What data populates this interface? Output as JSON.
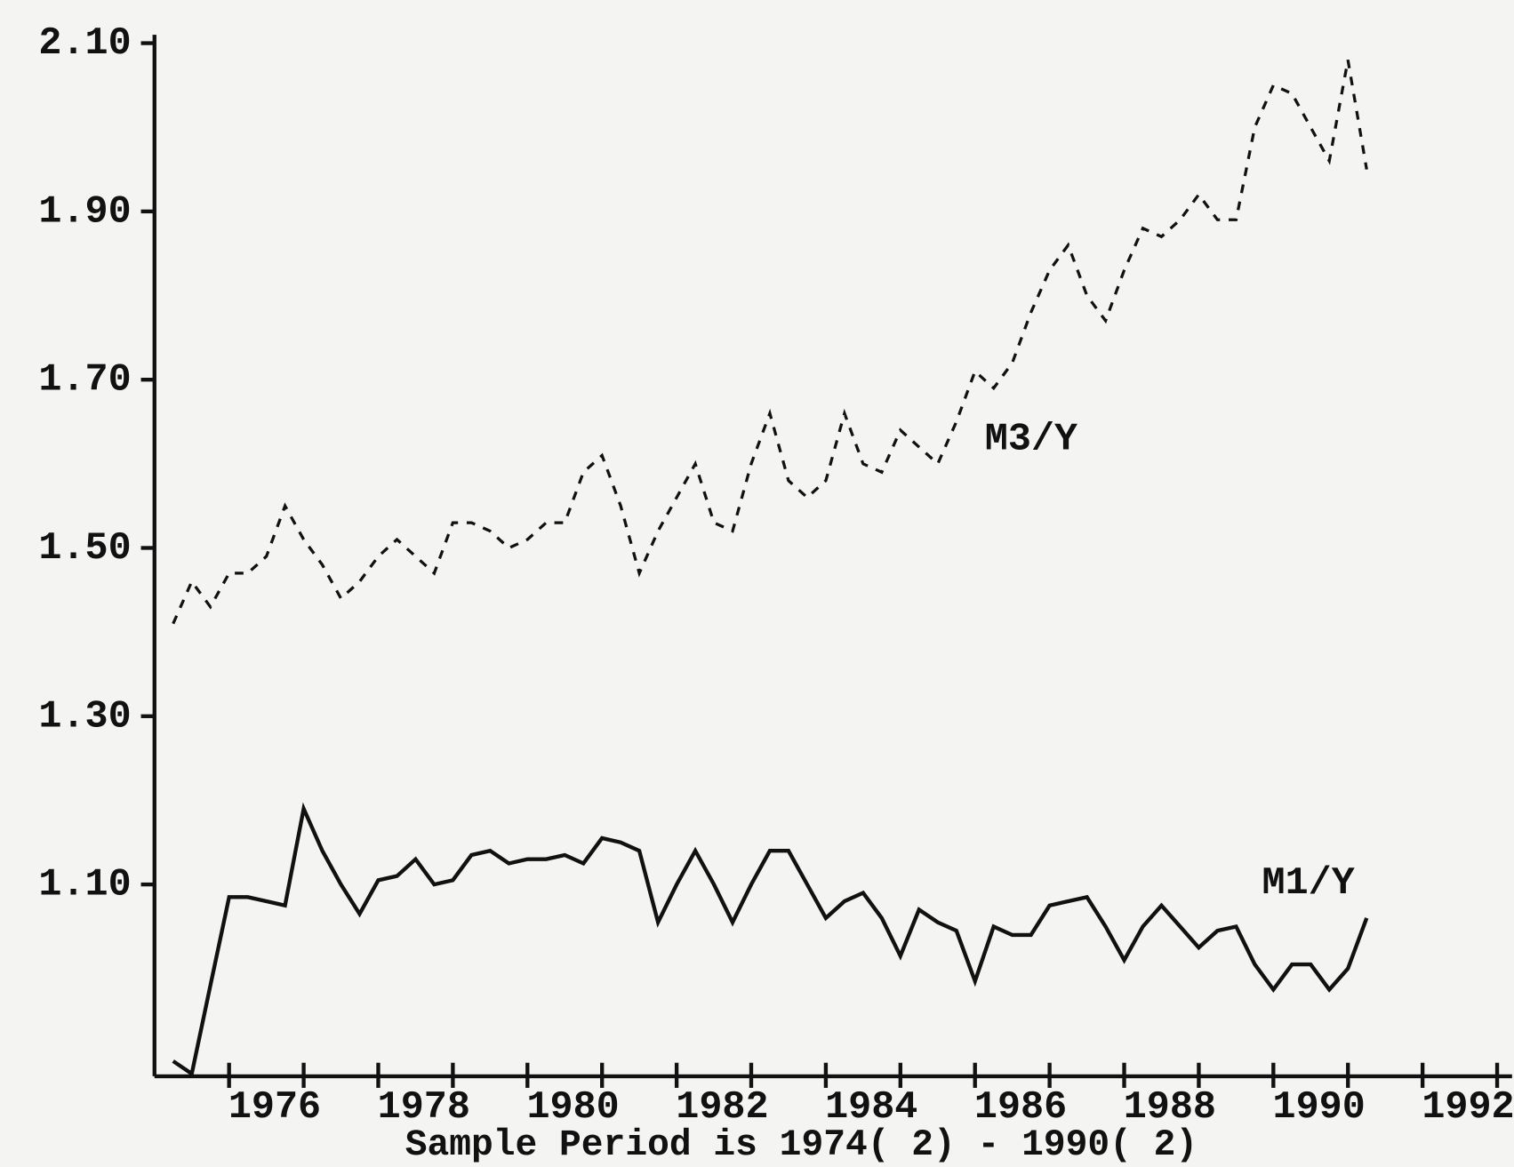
{
  "chart_data": {
    "type": "line",
    "xlabel": "Sample Period is 1974( 2) - 1990( 2)",
    "xlim": [
      1974,
      1992.2
    ],
    "xticks": [
      1976,
      1978,
      1980,
      1982,
      1984,
      1986,
      1988,
      1990,
      1992
    ],
    "xminorticks": [
      1975,
      1977,
      1979,
      1981,
      1983,
      1985,
      1987,
      1989,
      1991
    ],
    "ylim": [
      0.872,
      2.11
    ],
    "yticks": [
      {
        "value": 1.1,
        "label": "1.10"
      },
      {
        "value": 1.3,
        "label": "1.30"
      },
      {
        "value": 1.5,
        "label": "1.50"
      },
      {
        "value": 1.7,
        "label": "1.70"
      },
      {
        "value": 1.9,
        "label": "1.90"
      },
      {
        "value": 2.1,
        "label": "2.10"
      }
    ],
    "grid": false,
    "x": [
      1974.25,
      1974.5,
      1974.75,
      1975,
      1975.25,
      1975.5,
      1975.75,
      1976,
      1976.25,
      1976.5,
      1976.75,
      1977,
      1977.25,
      1977.5,
      1977.75,
      1978,
      1978.25,
      1978.5,
      1978.75,
      1979,
      1979.25,
      1979.5,
      1979.75,
      1980,
      1980.25,
      1980.5,
      1980.75,
      1981,
      1981.25,
      1981.5,
      1981.75,
      1982,
      1982.25,
      1982.5,
      1982.75,
      1983,
      1983.25,
      1983.5,
      1983.75,
      1984,
      1984.25,
      1984.5,
      1984.75,
      1985,
      1985.25,
      1985.5,
      1985.75,
      1986,
      1986.25,
      1986.5,
      1986.75,
      1987,
      1987.25,
      1987.5,
      1987.75,
      1988,
      1988.25,
      1988.5,
      1988.75,
      1989,
      1989.25,
      1989.5,
      1989.75,
      1990,
      1990.25
    ],
    "series": [
      {
        "name": "M3/Y",
        "color": "#111111",
        "dashed": true,
        "values": [
          1.41,
          1.46,
          1.43,
          1.47,
          1.47,
          1.49,
          1.55,
          1.51,
          1.48,
          1.44,
          1.46,
          1.49,
          1.51,
          1.49,
          1.47,
          1.53,
          1.53,
          1.52,
          1.5,
          1.51,
          1.53,
          1.53,
          1.59,
          1.61,
          1.55,
          1.47,
          1.52,
          1.56,
          1.6,
          1.53,
          1.52,
          1.6,
          1.66,
          1.58,
          1.56,
          1.58,
          1.66,
          1.6,
          1.59,
          1.64,
          1.62,
          1.6,
          1.65,
          1.71,
          1.69,
          1.72,
          1.78,
          1.83,
          1.86,
          1.8,
          1.77,
          1.83,
          1.88,
          1.87,
          1.89,
          1.92,
          1.89,
          1.89,
          2.0,
          2.05,
          2.04,
          2.0,
          1.96,
          2.08,
          1.95
        ]
      },
      {
        "name": "M1/Y",
        "color": "#111111",
        "dashed": false,
        "values": [
          0.89,
          0.875,
          0.98,
          1.085,
          1.085,
          1.08,
          1.075,
          1.19,
          1.14,
          1.1,
          1.065,
          1.105,
          1.11,
          1.13,
          1.1,
          1.105,
          1.135,
          1.14,
          1.125,
          1.13,
          1.13,
          1.135,
          1.125,
          1.155,
          1.15,
          1.14,
          1.055,
          1.1,
          1.14,
          1.1,
          1.055,
          1.1,
          1.14,
          1.14,
          1.1,
          1.06,
          1.08,
          1.09,
          1.06,
          1.015,
          1.07,
          1.055,
          1.045,
          0.985,
          1.05,
          1.04,
          1.04,
          1.075,
          1.08,
          1.085,
          1.05,
          1.01,
          1.05,
          1.075,
          1.05,
          1.025,
          1.045,
          1.05,
          1.005,
          0.975,
          1.005,
          1.005,
          0.975,
          1.0,
          1.06
        ]
      }
    ]
  }
}
